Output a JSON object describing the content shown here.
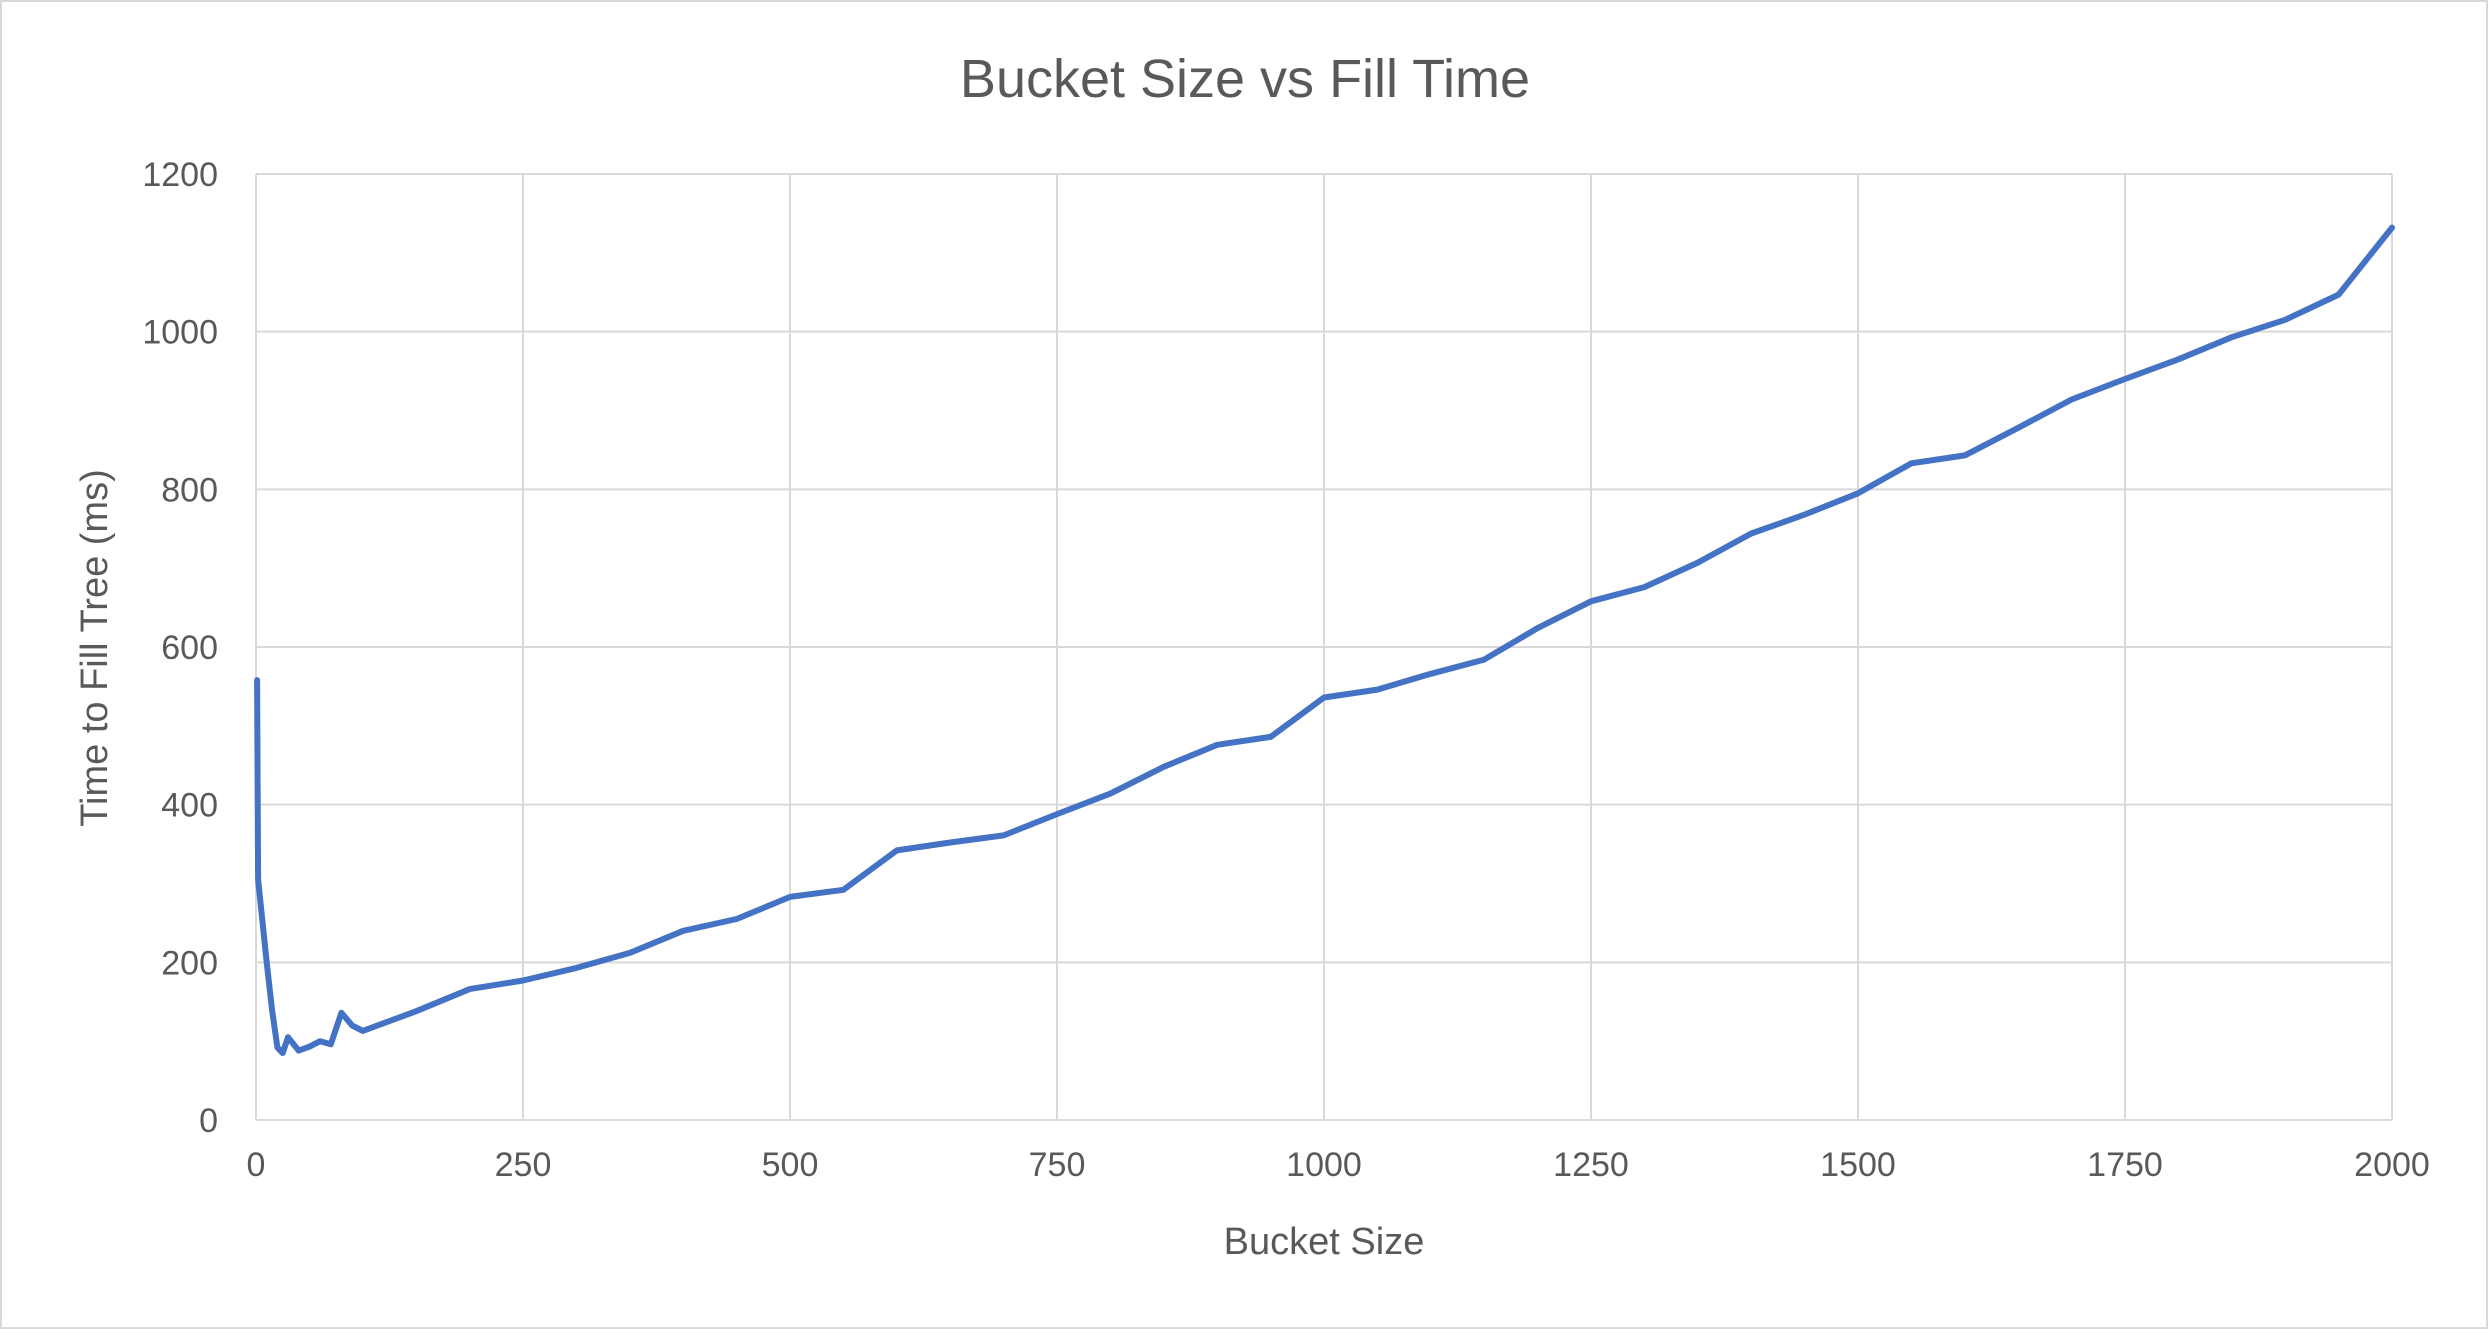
{
  "chart_data": {
    "type": "line",
    "title": "Bucket Size vs Fill Time",
    "xlabel": "Bucket Size",
    "ylabel": "Time to Fill Tree (ms)",
    "xlim": [
      0,
      2000
    ],
    "ylim": [
      0,
      1200
    ],
    "x_ticks": [
      0,
      250,
      500,
      750,
      1000,
      1250,
      1500,
      1750,
      2000
    ],
    "y_ticks": [
      0,
      200,
      400,
      600,
      800,
      1000,
      1200
    ],
    "grid": true,
    "legend": "none",
    "series": [
      {
        "color": "#4472c4",
        "points": [
          [
            1,
            558
          ],
          [
            2,
            305
          ],
          [
            10,
            200
          ],
          [
            15,
            140
          ],
          [
            20,
            92
          ],
          [
            25,
            85
          ],
          [
            30,
            105
          ],
          [
            40,
            88
          ],
          [
            50,
            93
          ],
          [
            60,
            100
          ],
          [
            70,
            96
          ],
          [
            80,
            136
          ],
          [
            90,
            120
          ],
          [
            100,
            113
          ],
          [
            150,
            138
          ],
          [
            200,
            166
          ],
          [
            250,
            177
          ],
          [
            300,
            193
          ],
          [
            350,
            212
          ],
          [
            400,
            240
          ],
          [
            450,
            255
          ],
          [
            500,
            283
          ],
          [
            550,
            292
          ],
          [
            600,
            342
          ],
          [
            650,
            352
          ],
          [
            700,
            361
          ],
          [
            750,
            388
          ],
          [
            800,
            414
          ],
          [
            850,
            448
          ],
          [
            900,
            476
          ],
          [
            950,
            486
          ],
          [
            1000,
            536
          ],
          [
            1050,
            546
          ],
          [
            1100,
            566
          ],
          [
            1150,
            584
          ],
          [
            1200,
            624
          ],
          [
            1250,
            658
          ],
          [
            1300,
            676
          ],
          [
            1350,
            707
          ],
          [
            1400,
            744
          ],
          [
            1450,
            768
          ],
          [
            1500,
            795
          ],
          [
            1550,
            833
          ],
          [
            1600,
            843
          ],
          [
            1650,
            878
          ],
          [
            1700,
            914
          ],
          [
            1750,
            940
          ],
          [
            1800,
            965
          ],
          [
            1850,
            993
          ],
          [
            1900,
            1015
          ],
          [
            1950,
            1047
          ],
          [
            2000,
            1132
          ]
        ]
      }
    ]
  }
}
